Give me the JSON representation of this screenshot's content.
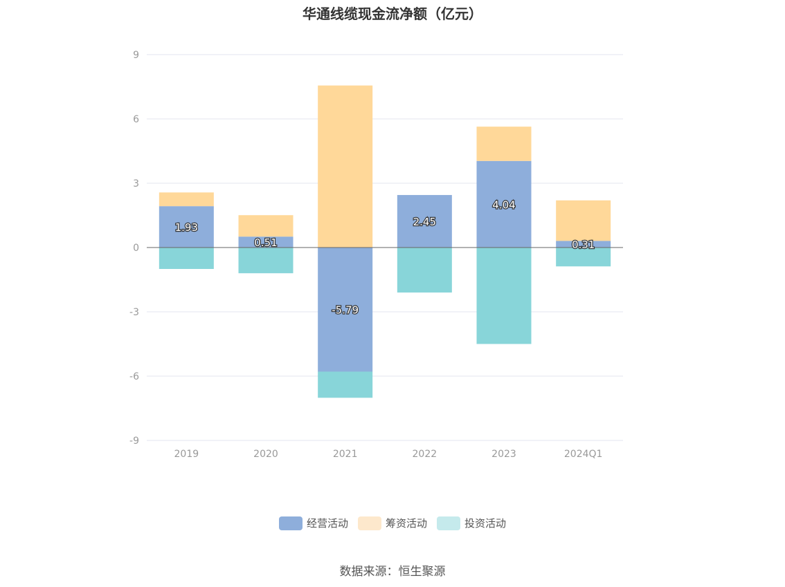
{
  "chart_data": {
    "type": "bar",
    "stacked": true,
    "title": "华通线缆现金流净额（亿元）",
    "ylabel": "",
    "xlabel": "",
    "ylim": [
      -9,
      9
    ],
    "yticks": [
      9,
      6,
      3,
      0,
      -3,
      -6,
      -9
    ],
    "categories": [
      "2019",
      "2020",
      "2021",
      "2022",
      "2023",
      "2024Q1"
    ],
    "series": [
      {
        "name": "经营活动",
        "color": "#8eaedb",
        "values": [
          1.93,
          0.51,
          -5.79,
          2.45,
          4.04,
          0.31
        ],
        "labels": [
          "1.93",
          "0.51",
          "-5.79",
          "2.45",
          "4.04",
          "0.31"
        ]
      },
      {
        "name": "筹资活动",
        "color": "#ffd899",
        "legend_color": "#fde8cc",
        "values": [
          0.64,
          1.0,
          7.56,
          0.0,
          1.6,
          1.89
        ]
      },
      {
        "name": "投资活动",
        "color": "#88d5d9",
        "legend_color": "#c5eaec",
        "values": [
          -1.0,
          -1.2,
          -1.22,
          -2.1,
          -4.5,
          -0.88
        ]
      }
    ],
    "grid": true,
    "legend": "bottom"
  },
  "source_text": "数据来源：恒生聚源"
}
